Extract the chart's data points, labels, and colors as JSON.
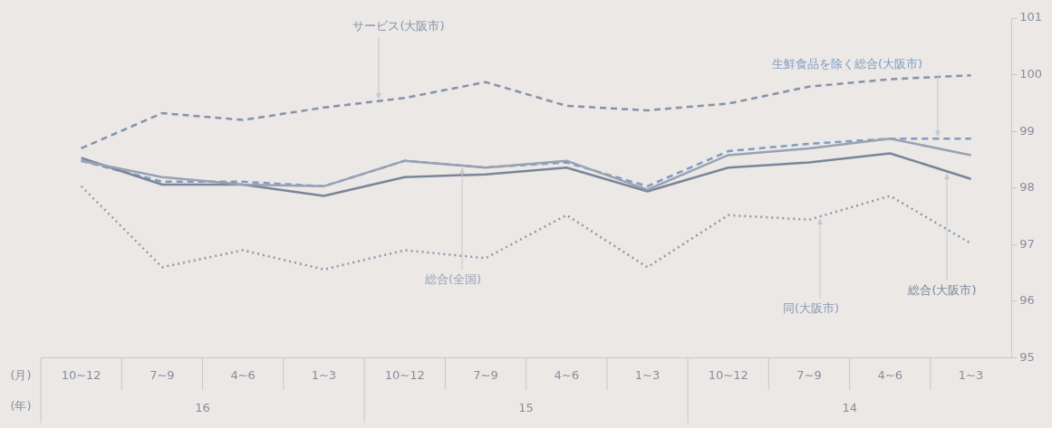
{
  "chart_data": {
    "type": "line",
    "categories": [
      "10~12",
      "7~9",
      "4~6",
      "1~3",
      "10~12",
      "7~9",
      "4~6",
      "1~3",
      "10~12",
      "7~9",
      "4~6",
      "1~3"
    ],
    "series": [
      {
        "name": "サービス(大阪市)",
        "color": "#8593a8",
        "line_style": "dashed",
        "values": [
          98.7,
          99.32,
          99.2,
          99.42,
          99.59,
          99.87,
          99.45,
          99.37,
          99.49,
          99.79,
          99.92,
          99.99
        ]
      },
      {
        "name": "総合(全国)",
        "color": "#98a2b2",
        "line_style": "solid",
        "values": [
          98.48,
          98.19,
          98.06,
          98.03,
          98.48,
          98.36,
          98.48,
          97.97,
          98.58,
          98.7,
          98.87,
          98.58
        ]
      },
      {
        "name": "総合(大阪市)",
        "color": "#7a8599",
        "line_style": "solid",
        "values": [
          98.53,
          98.06,
          98.06,
          97.86,
          98.19,
          98.24,
          98.36,
          97.94,
          98.36,
          98.45,
          98.61,
          98.16
        ]
      },
      {
        "name": "生鮮食品を除く総合(大阪市)",
        "color": "#7f9bc4",
        "line_style": "dashed",
        "values": [
          98.48,
          98.11,
          98.11,
          98.03,
          98.48,
          98.36,
          98.45,
          98.03,
          98.65,
          98.78,
          98.87,
          98.87
        ]
      },
      {
        "name": "同(大阪市)",
        "color": "#8a9bb0",
        "line_style": "dotted",
        "values": [
          98.03,
          96.6,
          96.9,
          96.56,
          96.9,
          96.76,
          97.52,
          96.6,
          97.52,
          97.44,
          97.86,
          97.02
        ]
      }
    ],
    "ylim": [
      95,
      101
    ],
    "yticks": [
      95,
      96,
      97,
      98,
      99,
      100,
      101
    ],
    "annotations": [
      "(月)",
      "(年)",
      "16",
      "15",
      "14"
    ],
    "marker": "none",
    "legend": false,
    "grid": false
  }
}
